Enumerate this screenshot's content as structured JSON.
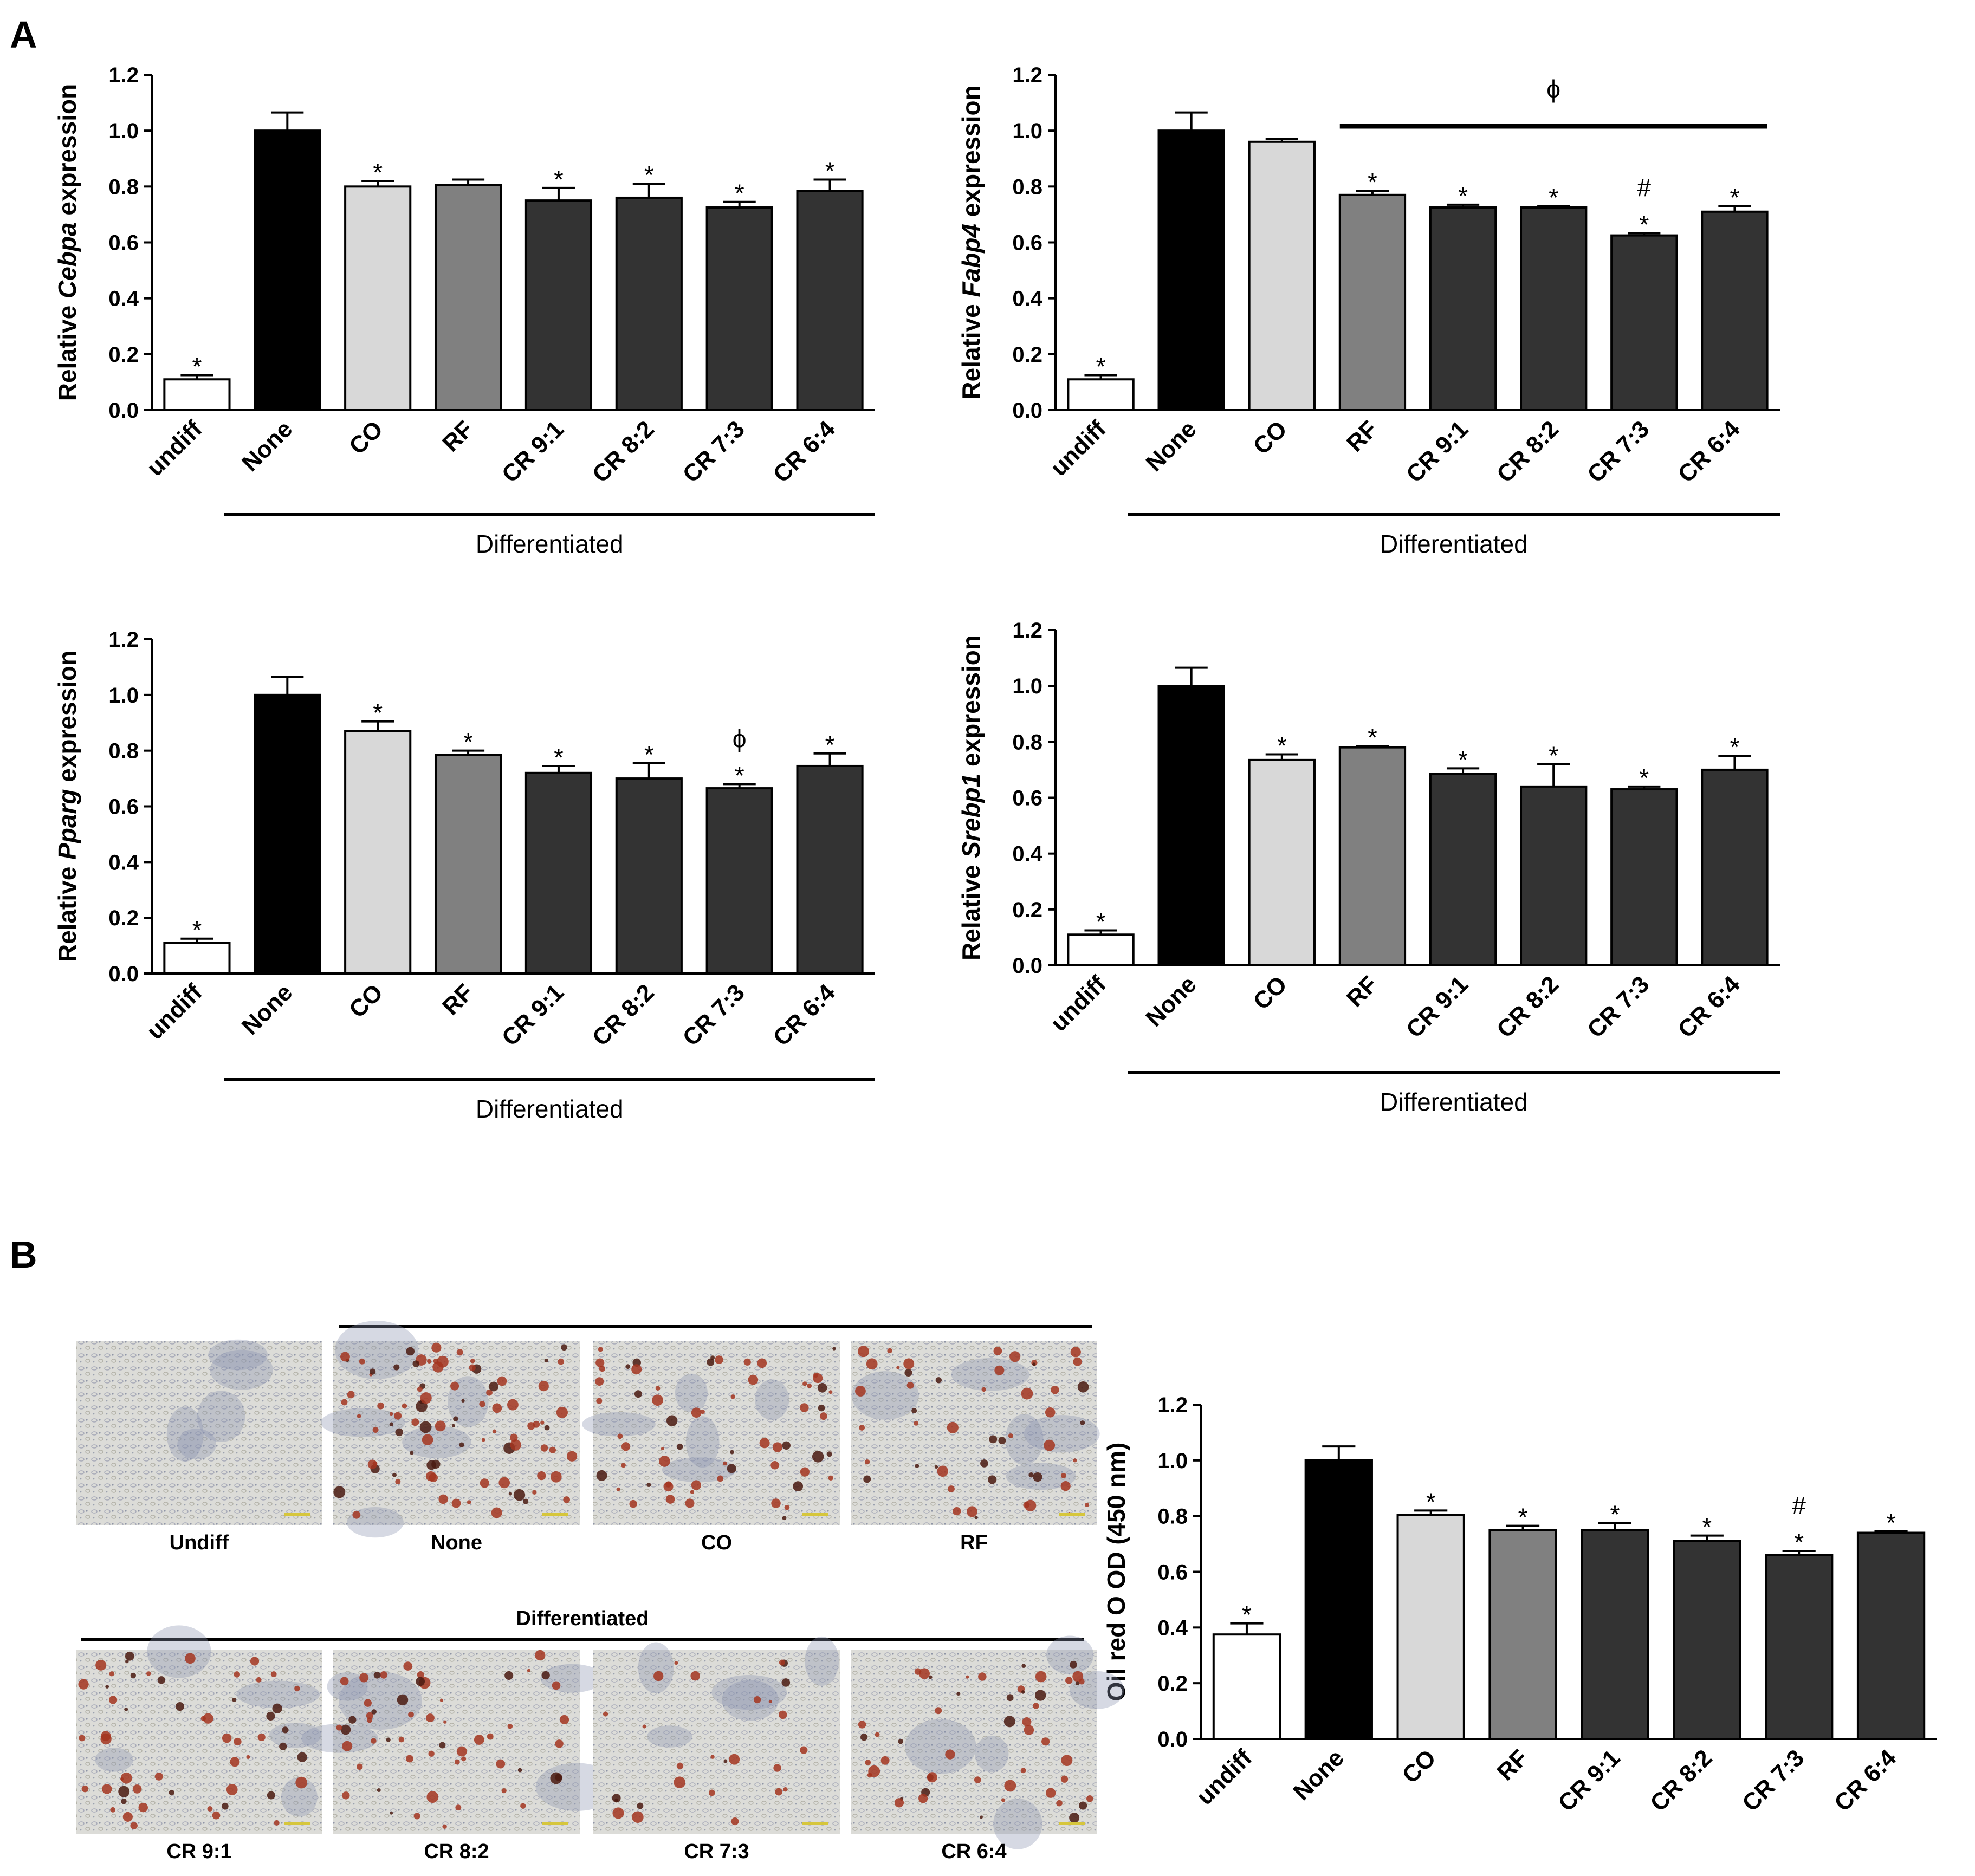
{
  "panels": {
    "a": "A",
    "b": "B"
  },
  "colors": {
    "undiff": "#ffffff",
    "None": "#000000",
    "CO": "#d8d8d8",
    "RF": "#808080",
    "CR": "#333333",
    "stain_red": "#a33520",
    "stain_blue": "#8a93b0"
  },
  "chart_data": [
    {
      "id": "cebpa",
      "type": "bar",
      "ylabel_pre": "Relative ",
      "ylabel_gene": "Cebpa",
      "ylabel_post": " expression",
      "categories": [
        "undiff",
        "None",
        "CO",
        "RF",
        "CR 9:1",
        "CR 8:2",
        "CR 7:3",
        "CR 6:4"
      ],
      "values": [
        0.11,
        1.0,
        0.8,
        0.805,
        0.75,
        0.76,
        0.725,
        0.785
      ],
      "errors": [
        0.015,
        0.065,
        0.02,
        0.02,
        0.045,
        0.05,
        0.02,
        0.04
      ],
      "ylim": [
        0,
        1.2
      ],
      "yticks": [
        "0.0",
        "0.2",
        "0.4",
        "0.6",
        "0.8",
        "1.0",
        "1.2"
      ],
      "marks": [
        [
          "*"
        ],
        [],
        [
          "*"
        ],
        [],
        [
          "*"
        ],
        [
          "*"
        ],
        [
          "*"
        ],
        [
          "*"
        ]
      ],
      "group_label": "Differentiated",
      "phi_bracket": null
    },
    {
      "id": "fabp4",
      "type": "bar",
      "ylabel_pre": "Relative ",
      "ylabel_gene": "Fabp4",
      "ylabel_post": " expression",
      "categories": [
        "undiff",
        "None",
        "CO",
        "RF",
        "CR 9:1",
        "CR 8:2",
        "CR 7:3",
        "CR 6:4"
      ],
      "values": [
        0.11,
        1.0,
        0.96,
        0.77,
        0.725,
        0.725,
        0.625,
        0.71
      ],
      "errors": [
        0.015,
        0.065,
        0.01,
        0.015,
        0.01,
        0.005,
        0.008,
        0.02
      ],
      "ylim": [
        0,
        1.2
      ],
      "yticks": [
        "0.0",
        "0.2",
        "0.4",
        "0.6",
        "0.8",
        "1.0",
        "1.2"
      ],
      "marks": [
        [
          "*"
        ],
        [],
        [],
        [
          "*"
        ],
        [
          "*"
        ],
        [
          "*"
        ],
        [
          "*",
          "#"
        ],
        [
          "*"
        ]
      ],
      "group_label": "Differentiated",
      "phi_bracket": {
        "symbol": "ϕ",
        "from": 3,
        "to": 7
      }
    },
    {
      "id": "pparg",
      "type": "bar",
      "ylabel_pre": "Relative ",
      "ylabel_gene": "Pparg",
      "ylabel_post": " expression",
      "categories": [
        "undiff",
        "None",
        "CO",
        "RF",
        "CR 9:1",
        "CR 8:2",
        "CR 7:3",
        "CR 6:4"
      ],
      "values": [
        0.11,
        1.0,
        0.87,
        0.785,
        0.72,
        0.7,
        0.665,
        0.745
      ],
      "errors": [
        0.015,
        0.065,
        0.035,
        0.015,
        0.025,
        0.055,
        0.015,
        0.045
      ],
      "ylim": [
        0,
        1.2
      ],
      "yticks": [
        "0.0",
        "0.2",
        "0.4",
        "0.6",
        "0.8",
        "1.0",
        "1.2"
      ],
      "marks": [
        [
          "*"
        ],
        [],
        [
          "*"
        ],
        [
          "*"
        ],
        [
          "*"
        ],
        [
          "*"
        ],
        [
          "*",
          "ϕ"
        ],
        [
          "*"
        ]
      ],
      "group_label": "Differentiated",
      "phi_bracket": null
    },
    {
      "id": "srebp1",
      "type": "bar",
      "ylabel_pre": "Relative ",
      "ylabel_gene": "Srebp1",
      "ylabel_post": " expression",
      "categories": [
        "undiff",
        "None",
        "CO",
        "RF",
        "CR 9:1",
        "CR 8:2",
        "CR 7:3",
        "CR 6:4"
      ],
      "values": [
        0.11,
        1.0,
        0.735,
        0.78,
        0.685,
        0.64,
        0.63,
        0.7
      ],
      "errors": [
        0.015,
        0.065,
        0.02,
        0.005,
        0.02,
        0.08,
        0.01,
        0.05
      ],
      "ylim": [
        0,
        1.2
      ],
      "yticks": [
        "0.0",
        "0.2",
        "0.4",
        "0.6",
        "0.8",
        "1.0",
        "1.2"
      ],
      "marks": [
        [
          "*"
        ],
        [],
        [
          "*"
        ],
        [
          "*"
        ],
        [
          "*"
        ],
        [
          "*"
        ],
        [
          "*"
        ],
        [
          "*"
        ]
      ],
      "group_label": "Differentiated",
      "phi_bracket": null
    },
    {
      "id": "oilred",
      "type": "bar",
      "ylabel_pre": "Oil red O OD (450 nm)",
      "ylabel_gene": "",
      "ylabel_post": "",
      "categories": [
        "undiff",
        "None",
        "CO",
        "RF",
        "CR 9:1",
        "CR 8:2",
        "CR 7:3",
        "CR 6:4"
      ],
      "values": [
        0.375,
        1.0,
        0.805,
        0.75,
        0.75,
        0.71,
        0.66,
        0.74
      ],
      "errors": [
        0.04,
        0.05,
        0.015,
        0.015,
        0.025,
        0.02,
        0.015,
        0.005
      ],
      "ylim": [
        0,
        1.2
      ],
      "yticks": [
        "0.0",
        "0.2",
        "0.4",
        "0.6",
        "0.8",
        "1.0",
        "1.2"
      ],
      "marks": [
        [
          "*"
        ],
        [],
        [
          "*"
        ],
        [
          "*"
        ],
        [
          "*"
        ],
        [
          "*"
        ],
        [
          "*",
          "#"
        ],
        [
          "*"
        ]
      ],
      "group_label": "",
      "phi_bracket": null
    }
  ],
  "micrographs": {
    "group_label": "Differentiated",
    "top": [
      "Undiff",
      "None",
      "CO",
      "RF"
    ],
    "bottom": [
      "CR 9:1",
      "CR 8:2",
      "CR 7:3",
      "CR 6:4"
    ],
    "stain_level_top": [
      0.0,
      1.0,
      0.7,
      0.55
    ],
    "stain_level_bottom": [
      0.6,
      0.6,
      0.3,
      0.55
    ]
  }
}
